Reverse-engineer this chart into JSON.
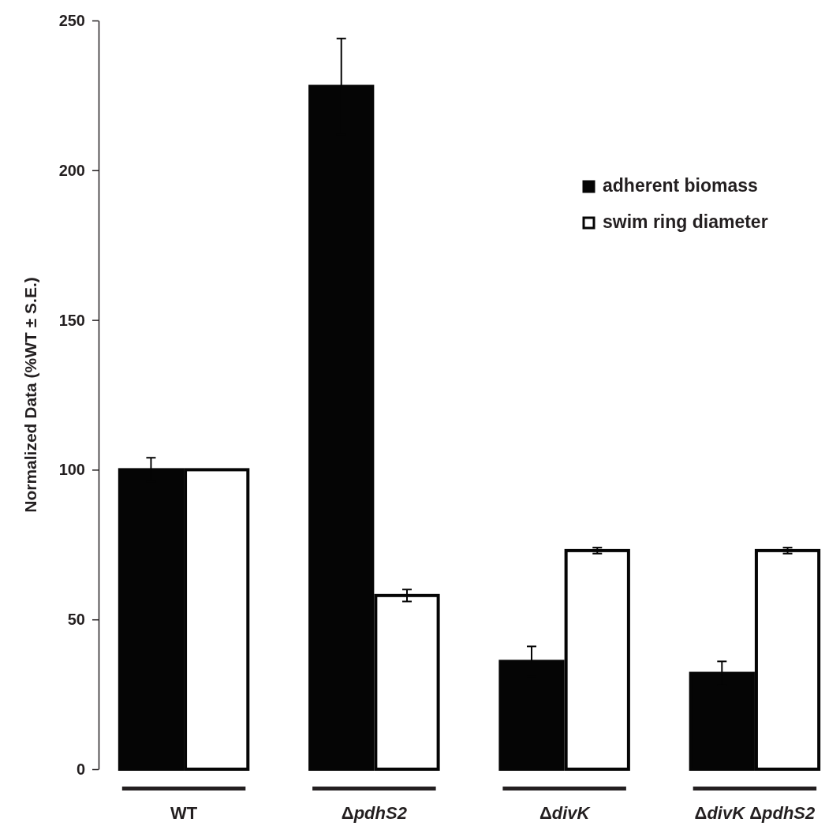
{
  "chart_data": {
    "type": "bar",
    "ylabel": "Normalized Data (%WT ± S.E.)",
    "categories": [
      "WT",
      "ΔpdhS2",
      "ΔdivK",
      "ΔdivK ΔpdhS2"
    ],
    "series": [
      {
        "name": "adherent biomass",
        "color": "#050505",
        "values": [
          100,
          228,
          36,
          32
        ],
        "errors": [
          4,
          16,
          5,
          4
        ]
      },
      {
        "name": "swim ring diameter",
        "color": "#ffffff",
        "values": [
          100,
          58,
          73,
          73
        ],
        "errors": [
          null,
          2,
          1,
          1
        ]
      }
    ],
    "ylim": [
      0,
      250
    ],
    "yticks": [
      0,
      50,
      100,
      150,
      200,
      250
    ],
    "legend": "top right"
  }
}
